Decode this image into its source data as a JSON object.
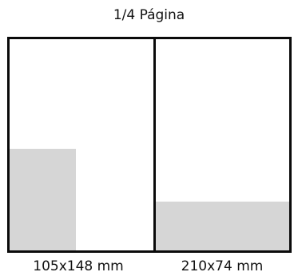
{
  "title": "1/4 Página",
  "panels": [
    {
      "caption": "105x148 mm",
      "fill_color": "#d6d6d6"
    },
    {
      "caption": "210x74 mm",
      "fill_color": "#d6d6d6"
    }
  ],
  "colors": {
    "border": "#0a0a0a",
    "fill": "#d6d6d6",
    "background": "#ffffff"
  }
}
